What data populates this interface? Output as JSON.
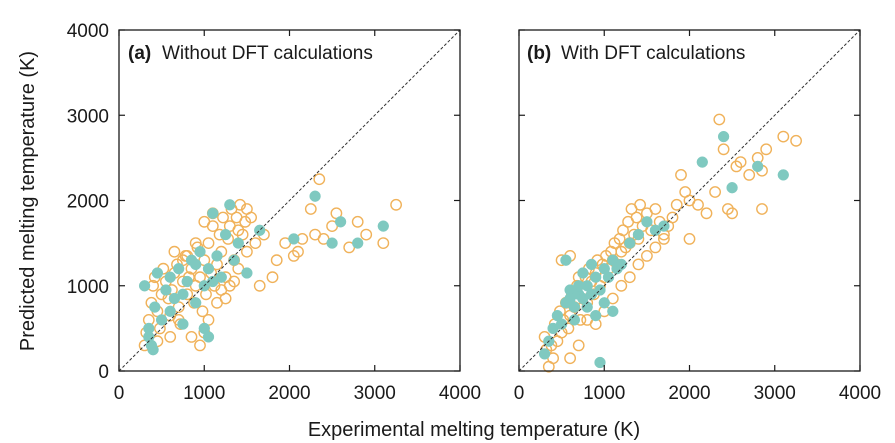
{
  "chart_data": {
    "type": "scatter",
    "ylabel": "Predicted melting temperature (K)",
    "xlabel": "Experimental melting temperature (K)",
    "xlim": [
      0,
      4000
    ],
    "ylim": [
      0,
      4000
    ],
    "ticks": [
      "0",
      "1000",
      "2000",
      "3000",
      "4000"
    ],
    "series_style": {
      "open": {
        "color": "#f0b25a",
        "marker": "open-circle"
      },
      "filled": {
        "color": "#7fc9c0",
        "marker": "filled-circle"
      }
    },
    "diagonal": "dashed y = x reference line",
    "panels": [
      {
        "tag": "(a)",
        "title": "Without DFT calculations",
        "open_points": [
          [
            300,
            300
          ],
          [
            320,
            450
          ],
          [
            350,
            600
          ],
          [
            380,
            800
          ],
          [
            400,
            1000
          ],
          [
            420,
            1100
          ],
          [
            450,
            700
          ],
          [
            480,
            500
          ],
          [
            500,
            900
          ],
          [
            520,
            1200
          ],
          [
            550,
            1050
          ],
          [
            580,
            850
          ],
          [
            600,
            650
          ],
          [
            620,
            950
          ],
          [
            650,
            1150
          ],
          [
            680,
            1250
          ],
          [
            700,
            750
          ],
          [
            720,
            550
          ],
          [
            750,
            1050
          ],
          [
            780,
            1350
          ],
          [
            800,
            900
          ],
          [
            820,
            1100
          ],
          [
            850,
            1200
          ],
          [
            880,
            800
          ],
          [
            900,
            1000
          ],
          [
            920,
            1450
          ],
          [
            950,
            1100
          ],
          [
            980,
            700
          ],
          [
            1000,
            1300
          ],
          [
            1020,
            900
          ],
          [
            1050,
            1500
          ],
          [
            1080,
            1150
          ],
          [
            1100,
            1700
          ],
          [
            1120,
            1000
          ],
          [
            1150,
            1250
          ],
          [
            1180,
            1600
          ],
          [
            1200,
            1400
          ],
          [
            1220,
            1800
          ],
          [
            1250,
            1100
          ],
          [
            1280,
            1550
          ],
          [
            1300,
            1700
          ],
          [
            1320,
            1900
          ],
          [
            1350,
            1300
          ],
          [
            1380,
            1800
          ],
          [
            1400,
            1200
          ],
          [
            1420,
            1950
          ],
          [
            1450,
            1600
          ],
          [
            1480,
            1750
          ],
          [
            1500,
            1400
          ],
          [
            1550,
            1800
          ],
          [
            1600,
            1500
          ],
          [
            1650,
            1000
          ],
          [
            1700,
            1600
          ],
          [
            1800,
            1100
          ],
          [
            1850,
            1300
          ],
          [
            1950,
            1500
          ],
          [
            2050,
            1350
          ],
          [
            2100,
            1400
          ],
          [
            2150,
            1550
          ],
          [
            2250,
            1900
          ],
          [
            2300,
            1600
          ],
          [
            2350,
            2250
          ],
          [
            2400,
            1550
          ],
          [
            2500,
            1700
          ],
          [
            2550,
            1850
          ],
          [
            2700,
            1450
          ],
          [
            2800,
            1750
          ],
          [
            2900,
            1600
          ],
          [
            3100,
            1500
          ],
          [
            3250,
            1950
          ],
          [
            700,
            600
          ],
          [
            850,
            400
          ],
          [
            950,
            300
          ],
          [
            1000,
            450
          ],
          [
            600,
            400
          ],
          [
            450,
            350
          ],
          [
            1050,
            600
          ],
          [
            1150,
            800
          ],
          [
            1250,
            850
          ],
          [
            1350,
            1050
          ],
          [
            900,
            1500
          ],
          [
            800,
            1350
          ],
          [
            1100,
            1850
          ],
          [
            1000,
            1750
          ],
          [
            650,
            1400
          ],
          [
            750,
            1300
          ],
          [
            1200,
            950
          ],
          [
            1300,
            1000
          ],
          [
            1400,
            1650
          ],
          [
            1500,
            1900
          ]
        ],
        "filled_points": [
          [
            300,
            1000
          ],
          [
            350,
            500
          ],
          [
            380,
            300
          ],
          [
            400,
            250
          ],
          [
            420,
            750
          ],
          [
            450,
            1150
          ],
          [
            500,
            600
          ],
          [
            550,
            950
          ],
          [
            600,
            1100
          ],
          [
            650,
            850
          ],
          [
            700,
            1200
          ],
          [
            750,
            900
          ],
          [
            800,
            1050
          ],
          [
            850,
            1300
          ],
          [
            900,
            800
          ],
          [
            950,
            1400
          ],
          [
            1000,
            1000
          ],
          [
            1050,
            1200
          ],
          [
            1100,
            1850
          ],
          [
            1150,
            1350
          ],
          [
            1200,
            1100
          ],
          [
            1250,
            1600
          ],
          [
            1300,
            1950
          ],
          [
            1350,
            1300
          ],
          [
            1400,
            1500
          ],
          [
            1500,
            1150
          ],
          [
            1650,
            1650
          ],
          [
            2050,
            1550
          ],
          [
            2300,
            2050
          ],
          [
            2500,
            1500
          ],
          [
            2600,
            1750
          ],
          [
            2800,
            1500
          ],
          [
            3100,
            1700
          ],
          [
            350,
            400
          ],
          [
            600,
            700
          ],
          [
            750,
            550
          ],
          [
            1000,
            500
          ],
          [
            1050,
            400
          ],
          [
            900,
            1250
          ],
          [
            1100,
            1050
          ]
        ]
      },
      {
        "tag": "(b)",
        "title": "With DFT calculations",
        "open_points": [
          [
            300,
            400
          ],
          [
            320,
            250
          ],
          [
            350,
            50
          ],
          [
            380,
            300
          ],
          [
            400,
            150
          ],
          [
            420,
            550
          ],
          [
            450,
            350
          ],
          [
            480,
            700
          ],
          [
            500,
            450
          ],
          [
            520,
            600
          ],
          [
            550,
            800
          ],
          [
            580,
            500
          ],
          [
            600,
            650
          ],
          [
            620,
            900
          ],
          [
            650,
            750
          ],
          [
            680,
            1000
          ],
          [
            700,
            850
          ],
          [
            720,
            600
          ],
          [
            750,
            950
          ],
          [
            780,
            1100
          ],
          [
            800,
            800
          ],
          [
            820,
            1200
          ],
          [
            850,
            1050
          ],
          [
            880,
            900
          ],
          [
            900,
            1150
          ],
          [
            920,
            1300
          ],
          [
            950,
            1000
          ],
          [
            980,
            1250
          ],
          [
            1000,
            1100
          ],
          [
            1020,
            1350
          ],
          [
            1050,
            1200
          ],
          [
            1080,
            1400
          ],
          [
            1100,
            1300
          ],
          [
            1120,
            1500
          ],
          [
            1150,
            1250
          ],
          [
            1180,
            1550
          ],
          [
            1200,
            1400
          ],
          [
            1220,
            1650
          ],
          [
            1250,
            1450
          ],
          [
            1280,
            1750
          ],
          [
            1300,
            1500
          ],
          [
            1320,
            1900
          ],
          [
            1350,
            1600
          ],
          [
            1380,
            1800
          ],
          [
            1400,
            1550
          ],
          [
            1420,
            1950
          ],
          [
            1450,
            1700
          ],
          [
            1500,
            1850
          ],
          [
            1550,
            1650
          ],
          [
            1600,
            1900
          ],
          [
            1650,
            1750
          ],
          [
            1700,
            1600
          ],
          [
            1800,
            1800
          ],
          [
            1850,
            1950
          ],
          [
            1950,
            2100
          ],
          [
            2000,
            1550
          ],
          [
            2100,
            1950
          ],
          [
            2200,
            1850
          ],
          [
            2300,
            2100
          ],
          [
            2350,
            2950
          ],
          [
            2400,
            2600
          ],
          [
            2450,
            1900
          ],
          [
            2500,
            1850
          ],
          [
            2550,
            2400
          ],
          [
            2700,
            2300
          ],
          [
            2800,
            2500
          ],
          [
            2850,
            1900
          ],
          [
            2900,
            2600
          ],
          [
            3100,
            2750
          ],
          [
            3250,
            2700
          ],
          [
            600,
            1350
          ],
          [
            700,
            1100
          ],
          [
            500,
            1300
          ],
          [
            800,
            600
          ],
          [
            900,
            550
          ],
          [
            1000,
            700
          ],
          [
            1100,
            850
          ],
          [
            1200,
            1000
          ],
          [
            1300,
            1100
          ],
          [
            1400,
            1250
          ],
          [
            1500,
            1350
          ],
          [
            1600,
            1450
          ],
          [
            1700,
            1550
          ],
          [
            1750,
            1700
          ],
          [
            1900,
            2300
          ],
          [
            2000,
            2000
          ],
          [
            2600,
            2450
          ],
          [
            2850,
            2350
          ],
          [
            700,
            300
          ],
          [
            600,
            150
          ]
        ],
        "filled_points": [
          [
            300,
            200
          ],
          [
            350,
            350
          ],
          [
            400,
            500
          ],
          [
            450,
            650
          ],
          [
            500,
            550
          ],
          [
            550,
            800
          ],
          [
            600,
            950
          ],
          [
            650,
            750
          ],
          [
            700,
            900
          ],
          [
            750,
            850
          ],
          [
            800,
            1000
          ],
          [
            850,
            900
          ],
          [
            900,
            1100
          ],
          [
            950,
            950
          ],
          [
            1000,
            1200
          ],
          [
            1050,
            1100
          ],
          [
            1100,
            1300
          ],
          [
            1150,
            1200
          ],
          [
            1200,
            1250
          ],
          [
            1300,
            1500
          ],
          [
            1400,
            1600
          ],
          [
            1500,
            1750
          ],
          [
            1600,
            1650
          ],
          [
            1700,
            1700
          ],
          [
            2150,
            2450
          ],
          [
            2400,
            2750
          ],
          [
            2500,
            2150
          ],
          [
            2800,
            2400
          ],
          [
            3100,
            2300
          ],
          [
            950,
            100
          ],
          [
            800,
            750
          ],
          [
            700,
            1000
          ],
          [
            600,
            850
          ],
          [
            1000,
            800
          ],
          [
            900,
            650
          ],
          [
            1100,
            700
          ],
          [
            750,
            1150
          ],
          [
            850,
            1250
          ],
          [
            550,
            1300
          ],
          [
            650,
            600
          ]
        ]
      }
    ]
  }
}
